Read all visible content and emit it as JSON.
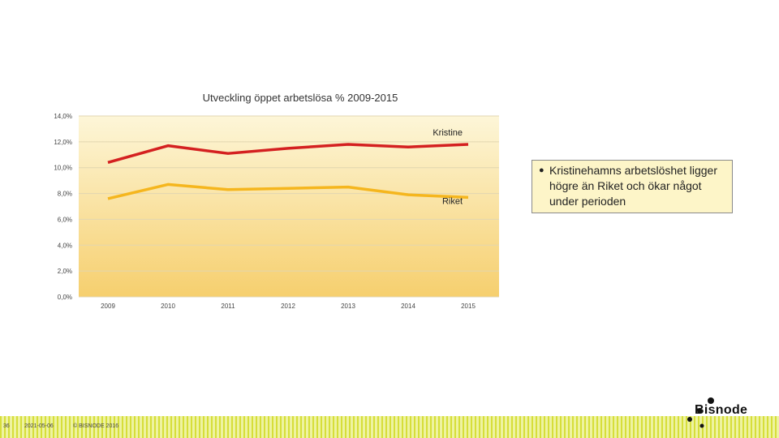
{
  "chart_data": {
    "type": "line",
    "title": "Utveckling öppet arbetslösa % 2009-2015",
    "x": [
      "2009",
      "2010",
      "2011",
      "2012",
      "2013",
      "2014",
      "2015"
    ],
    "ylim": [
      0,
      14
    ],
    "y_ticks": [
      "0,0%",
      "2,0%",
      "4,0%",
      "6,0%",
      "8,0%",
      "10,0%",
      "12,0%",
      "14,0%"
    ],
    "grid": true,
    "series": [
      {
        "name": "Kristine",
        "color": "#d42020",
        "values": [
          10.4,
          11.7,
          11.1,
          11.5,
          11.8,
          11.6,
          11.8
        ]
      },
      {
        "name": "Riket",
        "color": "#f5b61e",
        "values": [
          7.6,
          8.7,
          8.3,
          8.4,
          8.5,
          7.9,
          7.7
        ]
      }
    ]
  },
  "callout": {
    "bullet": "●",
    "text": "Kristinehamns arbetslöshet ligger högre än Riket och ökar något under perioden"
  },
  "footer": {
    "page_number": "36",
    "date": "2021-05-06",
    "copyright": "© BISNODE 2016"
  },
  "logo": {
    "text": "Bisnode"
  }
}
